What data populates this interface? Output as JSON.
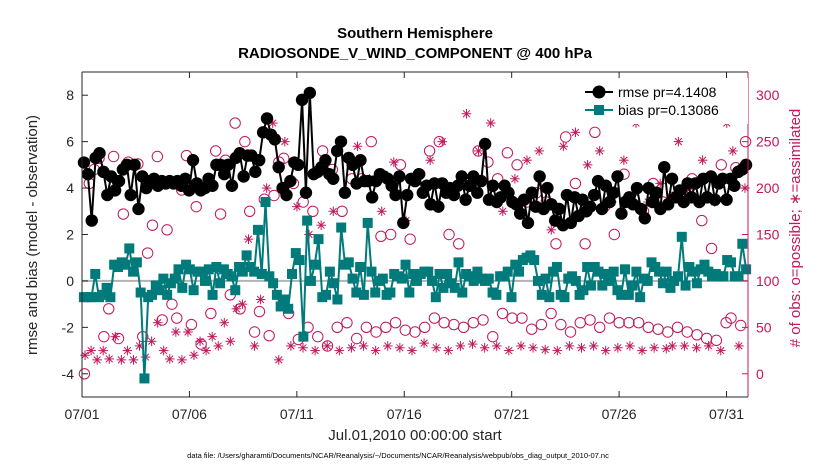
{
  "chart_data": {
    "type": "line",
    "title": "Southern Hemisphere",
    "subtitle": "RADIOSONDE_V_WIND_COMPONENT @ 400 hPa",
    "xlabel": "Jul.01,2010 00:00:00 start",
    "ylabel": "rmse and bias (model - observation)",
    "y2label": "# of obs: o=possible; ∗=assimilated",
    "footnote": "data file: /Users/gharamti/Documents/NCAR/Reanalysis/~/Documents/NCAR/Reanalysis/webpub/obs_diag_output_2010-07.nc",
    "xlim": [
      1,
      32
    ],
    "ylim": [
      -5,
      9
    ],
    "y2lim": [
      -25,
      325
    ],
    "xticks": [
      1,
      6,
      11,
      16,
      21,
      26,
      31
    ],
    "xtick_labels": [
      "07/01",
      "07/06",
      "07/11",
      "07/16",
      "07/21",
      "07/26",
      "07/31"
    ],
    "yticks": [
      -4,
      -2,
      0,
      2,
      4,
      6,
      8
    ],
    "ytick_labels": [
      "-4",
      "-2",
      "0",
      "2",
      "4",
      "6",
      "8"
    ],
    "y2ticks": [
      0,
      50,
      100,
      150,
      200,
      250,
      300
    ],
    "y2tick_labels": [
      "0",
      "50",
      "100",
      "150",
      "200",
      "250",
      "300"
    ],
    "grid": false,
    "legend_position": "top-right",
    "zero_line": true,
    "series": [
      {
        "name": "rmse pr=4.1408",
        "color": "#000000",
        "marker": "circle",
        "axis": "left",
        "values": [
          5.1,
          4.6,
          2.6,
          5.3,
          5.5,
          4.7,
          3.7,
          4.5,
          3.9,
          4.3,
          4.8,
          5.0,
          3.7,
          5.0,
          3.1,
          4.5,
          4.0,
          4.3,
          4.4,
          4.1,
          4.3,
          4.2,
          4.3,
          4.2,
          4.3,
          4.1,
          4.4,
          3.9,
          5.2,
          4.2,
          3.9,
          4.0,
          4.4,
          4.1,
          5.0,
          5.0,
          4.6,
          5.0,
          4.1,
          5.3,
          5.5,
          4.5,
          5.4,
          5.4,
          4.7,
          5.2,
          6.4,
          7.0,
          6.3,
          6.1,
          4.9,
          4.0,
          3.7,
          4.3,
          5.1,
          5.0,
          7.8,
          3.8,
          8.1,
          4.6,
          4.7,
          4.9,
          5.2,
          4.6,
          4.4,
          5.6,
          6.0,
          3.8,
          5.3,
          5.0,
          4.2,
          5.2,
          4.3,
          4.3,
          3.6,
          4.3,
          4.6,
          4.5,
          4.4,
          4.1,
          3.7,
          4.5,
          2.5,
          3.7,
          4.4,
          4.3,
          4.6,
          3.8,
          4.1,
          3.3,
          4.2,
          3.2,
          4.2,
          3.8,
          4.0,
          3.7,
          4.1,
          4.5,
          3.5,
          4.1,
          4.5,
          3.8,
          4.3,
          5.9,
          3.5,
          4.1,
          3.4,
          3.6,
          4.1,
          3.8,
          3.4,
          3.3,
          2.9,
          3.5,
          2.5,
          3.8,
          3.2,
          4.5,
          3.1,
          4.0,
          3.3,
          2.6,
          3.1,
          2.4,
          3.7,
          2.5,
          3.6,
          2.8,
          3.5,
          3.0,
          3.2,
          3.7,
          4.3,
          3.1,
          4.1,
          3.4,
          3.8,
          4.5,
          2.9,
          3.4,
          3.6,
          3.3,
          4.0,
          3.1,
          2.7,
          4.0,
          3.4,
          3.8,
          3.1,
          4.9,
          3.3,
          4.4,
          3.6,
          3.9,
          3.4,
          4.2,
          3.6,
          4.2,
          3.4,
          4.4,
          3.6,
          4.5,
          3.5,
          4.2,
          4.4,
          3.5,
          4.4,
          4.1,
          4.7,
          4.8,
          5.0
        ]
      },
      {
        "name": "bias pr=0.13086",
        "color": "#007a7a",
        "marker": "square",
        "axis": "left",
        "values": [
          -0.7,
          -0.7,
          -0.7,
          0.3,
          -0.7,
          -0.6,
          -0.3,
          -0.7,
          0.7,
          0.6,
          0.8,
          0.7,
          1.4,
          0.4,
          0.8,
          -0.5,
          -4.2,
          -0.7,
          -0.6,
          -0.2,
          -0.4,
          0.1,
          -0.6,
          -0.1,
          0.1,
          0.5,
          -0.3,
          0.7,
          0.5,
          -0.4,
          0.4,
          0.4,
          0.0,
          0.5,
          -0.6,
          0.6,
          -0.1,
          0.5,
          0.3,
          0.2,
          -0.4,
          0.6,
          0.4,
          1.1,
          0.6,
          0.4,
          2.2,
          0.3,
          3.4,
          0.2,
          -0.1,
          -0.6,
          -1.1,
          -0.8,
          -1.2,
          0.3,
          1.2,
          0.9,
          -2.4,
          2.6,
          0.0,
          0.7,
          1.8,
          -0.7,
          -0.6,
          0.4,
          -0.1,
          -0.8,
          2.3,
          0.7,
          0.8,
          0.1,
          -0.5,
          0.6,
          -0.6,
          2.5,
          0.4,
          -0.5,
          0.0,
          0.1,
          -0.6,
          -0.5,
          0.3,
          0.2,
          0.1,
          0.7,
          -0.5,
          0.3,
          0.0,
          0.3,
          0.4,
          0.4,
          0.0,
          -0.7,
          0.3,
          -0.3,
          0.3,
          -0.1,
          -0.3,
          0.8,
          -0.5,
          0.3,
          0.2,
          0.0,
          0.4,
          0.1,
          0.0,
          0.1,
          -0.5,
          -0.6,
          0.2,
          0.2,
          0.4,
          -0.7,
          0.7,
          0.4,
          0.9,
          1.0,
          1.1,
          0.9,
          0.0,
          -0.6,
          0.1,
          -0.7,
          0.4,
          0.6,
          -0.6,
          -0.7,
          0.1,
          0.2,
          0.0,
          -0.6,
          -0.4,
          0.6,
          -0.2,
          0.6,
          0.4,
          -0.2,
          0.3,
          0.0,
          0.4,
          -0.4,
          -0.6,
          0.5,
          -0.6,
          -0.2,
          0.4,
          -0.7,
          0.1,
          0.0,
          0.8,
          0.6,
          0.4,
          -0.1,
          0.4,
          -0.3,
          0.0,
          0.2,
          1.9,
          -0.2,
          0.6,
          0.4,
          -0.1,
          0.5,
          0.7,
          0.4,
          0.2,
          0.3,
          0.2,
          0.2,
          0.9,
          0.8,
          0.2,
          0.2,
          1.6,
          0.5
        ]
      },
      {
        "name": "possible",
        "color": "#c2185b",
        "marker": "open-circle",
        "axis": "right",
        "values": [
          0,
          205,
          220,
          232,
          40,
          70,
          234,
          38,
          172,
          228,
          225,
          226,
          40,
          130,
          160,
          234,
          58,
          155,
          75,
          60,
          198,
          235,
          53,
          180,
          32,
          200,
          65,
          240,
          172,
          230,
          85,
          270,
          70,
          250,
          175,
          45,
          67,
          188,
          41,
          192,
          228,
          232,
          65,
          205,
          37,
          185,
          50,
          175,
          40,
          240,
          30,
          220,
          50,
          175,
          55,
          210,
          38,
          210,
          50,
          250,
          45,
          148,
          50,
          150,
          55,
          225,
          47,
          145,
          45,
          215,
          50,
          240,
          60,
          250,
          55,
          150,
          53,
          140,
          50,
          205,
          55,
          240,
          58,
          228,
          40,
          210,
          65,
          238,
          60,
          225,
          60,
          185,
          48,
          195,
          53,
          185,
          65,
          140,
          53,
          255,
          45,
          205,
          55,
          140,
          58,
          260,
          50,
          180,
          60,
          150,
          55,
          215,
          55,
          188,
          55,
          175,
          50,
          205,
          48,
          185,
          45,
          190,
          50,
          195,
          45,
          210,
          42,
          165,
          38,
          135,
          36,
          225,
          55,
          60,
          222,
          52,
          250
        ]
      },
      {
        "name": "assimilated",
        "color": "#c2185b",
        "marker": "asterisk",
        "axis": "right",
        "values": [
          20,
          25,
          15,
          25,
          16,
          40,
          15,
          25,
          15,
          30,
          18,
          35,
          55,
          25,
          16,
          45,
          15,
          45,
          20,
          35,
          25,
          40,
          30,
          55,
          35,
          70,
          75,
          145,
          30,
          80,
          200,
          270,
          15,
          250,
          30,
          180,
          28,
          150,
          25,
          160,
          30,
          175,
          25,
          195,
          28,
          245,
          30,
          210,
          25,
          175,
          30,
          228,
          28,
          165,
          25,
          210,
          33,
          230,
          28,
          250,
          25,
          195,
          30,
          280,
          32,
          240,
          28,
          270,
          30,
          175,
          25,
          210,
          30,
          230,
          28,
          240,
          26,
          155,
          25,
          245,
          30,
          260,
          28,
          225,
          30,
          240,
          25,
          185,
          28,
          230,
          30,
          270,
          25,
          185,
          28,
          205,
          27,
          30,
          250,
          30,
          200,
          28,
          230,
          30,
          185,
          25,
          270,
          240,
          30,
          200
        ]
      }
    ]
  }
}
